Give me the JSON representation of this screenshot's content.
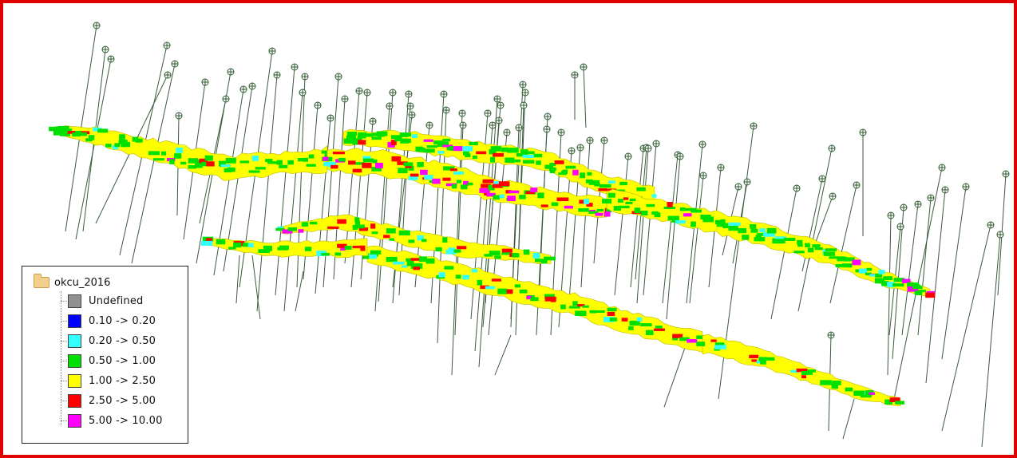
{
  "legend": {
    "title": "okcu_2016",
    "items": [
      {
        "label": "Undefined",
        "color": "#909090"
      },
      {
        "label": "0.10 -> 0.20",
        "color": "#0000ff"
      },
      {
        "label": "0.20 -> 0.50",
        "color": "#33ffff"
      },
      {
        "label": "0.50 -> 1.00",
        "color": "#00e000"
      },
      {
        "label": "1.00 -> 2.50",
        "color": "#ffff00"
      },
      {
        "label": "2.50 -> 5.00",
        "color": "#ff0000"
      },
      {
        "label": "5.00 -> 10.00",
        "color": "#ff00ff"
      }
    ]
  },
  "colors": {
    "frame_border": "#e00000",
    "drillhole": "#3a5a3a",
    "collar": "#2f5a2f"
  },
  "icons": [
    "drillhole-collar-icon",
    "folder-icon"
  ]
}
